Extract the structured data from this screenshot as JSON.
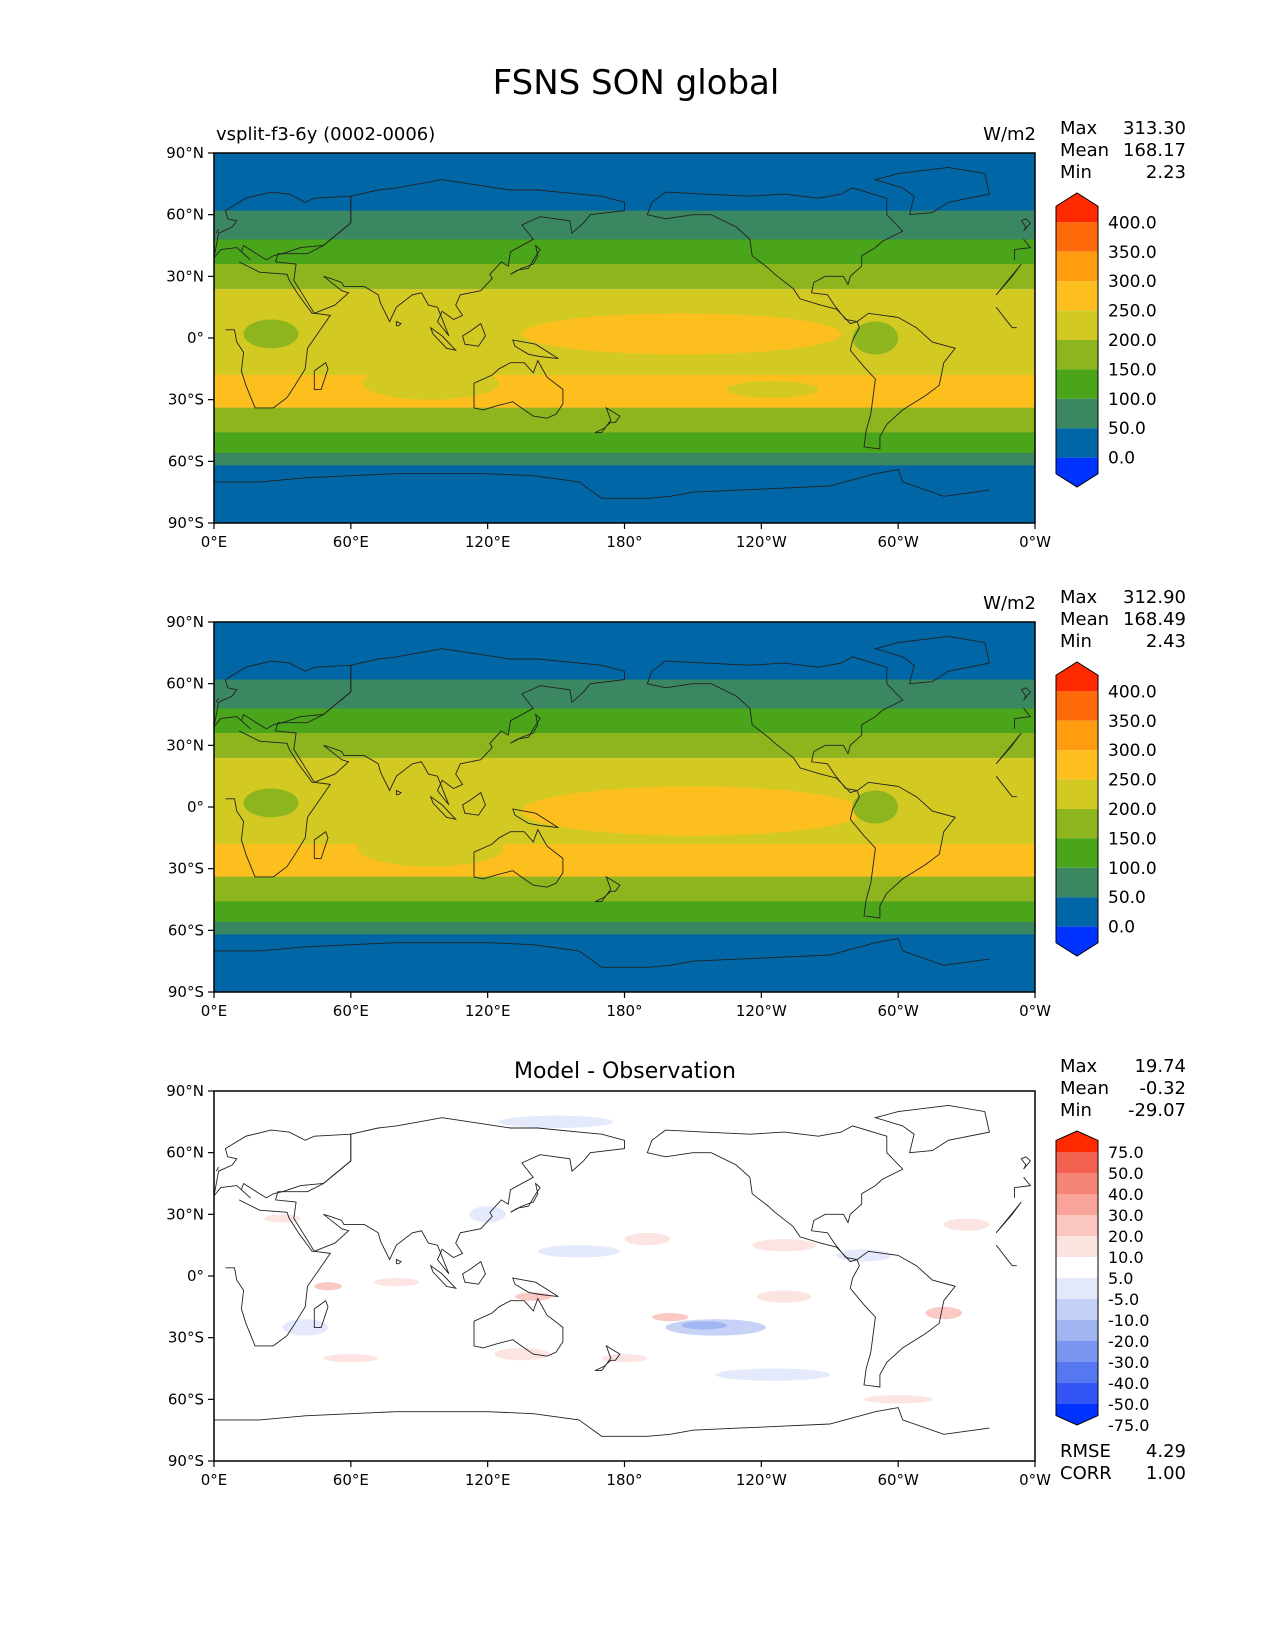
{
  "title": "FSNS SON global",
  "colors": {
    "frame": "#000000",
    "coast": "#222222",
    "abs_levels": [
      "#0033ff",
      "#0066a6",
      "#3b8762",
      "#4aa51a",
      "#8cb51e",
      "#d2c922",
      "#fcbf1d",
      "#ff9c10",
      "#ff6a0a",
      "#ff2a00"
    ],
    "diff_levels": [
      "#0033ff",
      "#3355f5",
      "#5577f0",
      "#7a95ef",
      "#a0b4f2",
      "#c4d0f7",
      "#e3e9fb",
      "#ffffff",
      "#fbe3e0",
      "#fbc6c0",
      "#f8a49a",
      "#f58576",
      "#f36151",
      "#ff2a00"
    ]
  },
  "chart_data": [
    {
      "type": "contour-map",
      "title": "",
      "left_label": "vsplit-f3-6y (0002-0006)",
      "units": "W/m2",
      "stats": [
        {
          "label": "Max",
          "value": "313.30"
        },
        {
          "label": "Mean",
          "value": "168.17"
        },
        {
          "label": "Min",
          "value": "2.23"
        }
      ],
      "x_ticks": [
        "0°E",
        "60°E",
        "120°E",
        "180°",
        "120°W",
        "60°W",
        "0°W"
      ],
      "y_ticks": [
        "90°N",
        "60°N",
        "30°N",
        "0°",
        "30°S",
        "60°S",
        "90°S"
      ],
      "xlim": [
        0,
        360
      ],
      "ylim": [
        -90,
        90
      ],
      "colorbar": {
        "levels": [
          "400.0",
          "350.0",
          "300.0",
          "250.0",
          "200.0",
          "150.0",
          "100.0",
          "50.0",
          "0.0"
        ],
        "extend": "both"
      },
      "zonal_bands": [
        {
          "lat_top": 90,
          "lat_bottom": 62,
          "bin": 1
        },
        {
          "lat_top": 62,
          "lat_bottom": 48,
          "bin": 2
        },
        {
          "lat_top": 48,
          "lat_bottom": 36,
          "bin": 3
        },
        {
          "lat_top": 36,
          "lat_bottom": 24,
          "bin": 4
        },
        {
          "lat_top": 24,
          "lat_bottom": -18,
          "bin": 5
        },
        {
          "lat_top": -18,
          "lat_bottom": -34,
          "bin": 6
        },
        {
          "lat_top": -34,
          "lat_bottom": -46,
          "bin": 4
        },
        {
          "lat_top": -46,
          "lat_bottom": -56,
          "bin": 3
        },
        {
          "lat_top": -56,
          "lat_bottom": -62,
          "bin": 2
        },
        {
          "lat_top": -62,
          "lat_bottom": -90,
          "bin": 1
        }
      ],
      "blobs": [
        {
          "lon": 205,
          "lat": 2,
          "rlon": 70,
          "rlat": 10,
          "bin": 6
        },
        {
          "lon": 95,
          "lat": -22,
          "rlon": 30,
          "rlat": 8,
          "bin": 5
        },
        {
          "lon": 245,
          "lat": -25,
          "rlon": 20,
          "rlat": 4,
          "bin": 5
        },
        {
          "lon": 25,
          "lat": 2,
          "rlon": 12,
          "rlat": 7,
          "bin": 4
        },
        {
          "lon": 290,
          "lat": 0,
          "rlon": 10,
          "rlat": 8,
          "bin": 4
        }
      ]
    },
    {
      "type": "contour-map",
      "title": "",
      "left_label": "",
      "units": "W/m2",
      "stats": [
        {
          "label": "Max",
          "value": "312.90"
        },
        {
          "label": "Mean",
          "value": "168.49"
        },
        {
          "label": "Min",
          "value": "2.43"
        }
      ],
      "x_ticks": [
        "0°E",
        "60°E",
        "120°E",
        "180°",
        "120°W",
        "60°W",
        "0°W"
      ],
      "y_ticks": [
        "90°N",
        "60°N",
        "30°N",
        "0°",
        "30°S",
        "60°S",
        "90°S"
      ],
      "xlim": [
        0,
        360
      ],
      "ylim": [
        -90,
        90
      ],
      "colorbar": {
        "levels": [
          "400.0",
          "350.0",
          "300.0",
          "250.0",
          "200.0",
          "150.0",
          "100.0",
          "50.0",
          "0.0"
        ],
        "extend": "both"
      },
      "zonal_bands": [
        {
          "lat_top": 90,
          "lat_bottom": 62,
          "bin": 1
        },
        {
          "lat_top": 62,
          "lat_bottom": 48,
          "bin": 2
        },
        {
          "lat_top": 48,
          "lat_bottom": 36,
          "bin": 3
        },
        {
          "lat_top": 36,
          "lat_bottom": 24,
          "bin": 4
        },
        {
          "lat_top": 24,
          "lat_bottom": -18,
          "bin": 5
        },
        {
          "lat_top": -18,
          "lat_bottom": -34,
          "bin": 6
        },
        {
          "lat_top": -34,
          "lat_bottom": -46,
          "bin": 4
        },
        {
          "lat_top": -46,
          "lat_bottom": -56,
          "bin": 3
        },
        {
          "lat_top": -56,
          "lat_bottom": -62,
          "bin": 2
        },
        {
          "lat_top": -62,
          "lat_bottom": -90,
          "bin": 1
        }
      ],
      "blobs": [
        {
          "lon": 210,
          "lat": -2,
          "rlon": 75,
          "rlat": 12,
          "bin": 6
        },
        {
          "lon": 95,
          "lat": -20,
          "rlon": 32,
          "rlat": 9,
          "bin": 5
        },
        {
          "lon": 25,
          "lat": 2,
          "rlon": 12,
          "rlat": 7,
          "bin": 4
        },
        {
          "lon": 290,
          "lat": 0,
          "rlon": 10,
          "rlat": 8,
          "bin": 4
        }
      ]
    },
    {
      "type": "contour-map",
      "title": "Model - Observation",
      "left_label": "",
      "units": "",
      "stats": [
        {
          "label": "Max",
          "value": "19.74"
        },
        {
          "label": "Mean",
          "value": "-0.32"
        },
        {
          "label": "Min",
          "value": "-29.07"
        }
      ],
      "bottom_stats": [
        {
          "label": "RMSE",
          "value": "4.29"
        },
        {
          "label": "CORR",
          "value": "1.00"
        }
      ],
      "x_ticks": [
        "0°E",
        "60°E",
        "120°E",
        "180°",
        "120°W",
        "60°W",
        "0°W"
      ],
      "y_ticks": [
        "90°N",
        "60°N",
        "30°N",
        "0°",
        "30°S",
        "60°S",
        "90°S"
      ],
      "xlim": [
        0,
        360
      ],
      "ylim": [
        -90,
        90
      ],
      "colorbar": {
        "levels": [
          "75.0",
          "50.0",
          "40.0",
          "30.0",
          "20.0",
          "10.0",
          "5.0",
          "-5.0",
          "-10.0",
          "-20.0",
          "-30.0",
          "-40.0",
          "-50.0",
          "-75.0"
        ],
        "extend": "both"
      },
      "zonal_bands": [],
      "blobs": [
        {
          "lon": 220,
          "lat": -25,
          "rlon": 22,
          "rlat": 4,
          "bin": 5
        },
        {
          "lon": 215,
          "lat": -24,
          "rlon": 10,
          "rlat": 2,
          "bin": 4
        },
        {
          "lon": 160,
          "lat": 12,
          "rlon": 18,
          "rlat": 3,
          "bin": 6
        },
        {
          "lon": 245,
          "lat": -48,
          "rlon": 25,
          "rlat": 3,
          "bin": 6
        },
        {
          "lon": 120,
          "lat": 30,
          "rlon": 8,
          "rlat": 4,
          "bin": 6
        },
        {
          "lon": 40,
          "lat": -25,
          "rlon": 10,
          "rlat": 4,
          "bin": 6
        },
        {
          "lon": 285,
          "lat": 10,
          "rlon": 12,
          "rlat": 3,
          "bin": 6
        },
        {
          "lon": 150,
          "lat": 75,
          "rlon": 25,
          "rlat": 3,
          "bin": 6
        },
        {
          "lon": 250,
          "lat": 15,
          "rlon": 14,
          "rlat": 3,
          "bin": 8
        },
        {
          "lon": 190,
          "lat": 18,
          "rlon": 10,
          "rlat": 3,
          "bin": 8
        },
        {
          "lon": 50,
          "lat": -5,
          "rlon": 6,
          "rlat": 2,
          "bin": 9
        },
        {
          "lon": 80,
          "lat": -3,
          "rlon": 10,
          "rlat": 2,
          "bin": 8
        },
        {
          "lon": 200,
          "lat": -20,
          "rlon": 8,
          "rlat": 2,
          "bin": 9
        },
        {
          "lon": 320,
          "lat": -18,
          "rlon": 8,
          "rlat": 3,
          "bin": 9
        },
        {
          "lon": 250,
          "lat": -10,
          "rlon": 12,
          "rlat": 3,
          "bin": 8
        },
        {
          "lon": 140,
          "lat": -10,
          "rlon": 8,
          "rlat": 2,
          "bin": 9
        },
        {
          "lon": 135,
          "lat": -38,
          "rlon": 12,
          "rlat": 3,
          "bin": 8
        },
        {
          "lon": 30,
          "lat": 28,
          "rlon": 8,
          "rlat": 2,
          "bin": 8
        },
        {
          "lon": 330,
          "lat": 25,
          "rlon": 10,
          "rlat": 3,
          "bin": 8
        },
        {
          "lon": 60,
          "lat": -40,
          "rlon": 12,
          "rlat": 2,
          "bin": 8
        },
        {
          "lon": 180,
          "lat": -40,
          "rlon": 10,
          "rlat": 2,
          "bin": 8
        },
        {
          "lon": 300,
          "lat": -60,
          "rlon": 15,
          "rlat": 2,
          "bin": 8
        }
      ]
    }
  ]
}
